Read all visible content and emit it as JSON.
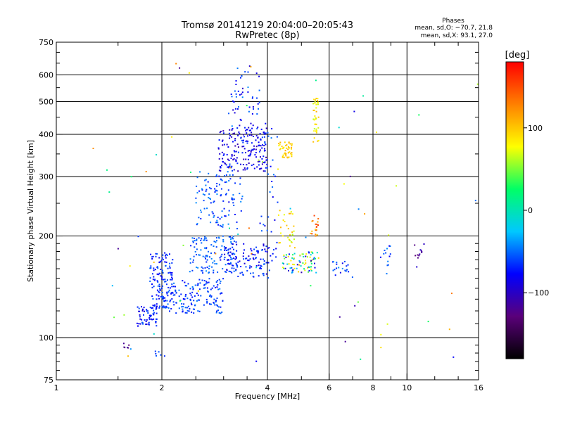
{
  "chart_data": {
    "type": "scatter",
    "title_line1": "Tromsø 20141219 20:04:00–20:05:43",
    "title_line2": "RwPretec (8p)",
    "xlabel": "Frequency [MHz]",
    "ylabel": "Stationary phase Virtual Height [km]",
    "x_scale": "log",
    "y_scale": "log",
    "xlim": [
      1,
      16
    ],
    "ylim": [
      75,
      750
    ],
    "x_ticks": [
      {
        "value": 1,
        "label": "1"
      },
      {
        "value": 2,
        "label": "2"
      },
      {
        "value": 4,
        "label": "4"
      },
      {
        "value": 6,
        "label": "6"
      },
      {
        "value": 8,
        "label": "8"
      },
      {
        "value": 10,
        "label": "10"
      },
      {
        "value": 16,
        "label": "16"
      }
    ],
    "y_ticks": [
      {
        "value": 75,
        "label": "75"
      },
      {
        "value": 100,
        "label": "100"
      },
      {
        "value": 200,
        "label": "200"
      },
      {
        "value": 300,
        "label": "300"
      },
      {
        "value": 400,
        "label": "400"
      },
      {
        "value": 500,
        "label": "500"
      },
      {
        "value": 600,
        "label": "600"
      },
      {
        "value": 750,
        "label": "750"
      }
    ],
    "grid": true,
    "phase_box": {
      "title": "Phases",
      "line1": "mean, sd,O: −70.7, 21.8",
      "line2": "mean, sd,X:  93.1, 27.0"
    },
    "colorbar": {
      "label": "[deg]",
      "range": [
        -180,
        180
      ],
      "ticks": [
        {
          "value": 100,
          "label": "100"
        },
        {
          "value": 0,
          "label": "0"
        },
        {
          "value": -100,
          "label": "−100"
        }
      ],
      "colors": [
        "#000000",
        "#5a007a",
        "#0000ff",
        "#00c8ff",
        "#00ff66",
        "#ffff00",
        "#ff8000",
        "#ff0000"
      ]
    },
    "clusters": [
      {
        "x": [
          1.7,
          1.95
        ],
        "y": [
          108,
          125
        ],
        "phase": [
          -95,
          -55
        ],
        "n": 60
      },
      {
        "x": [
          1.85,
          2.15
        ],
        "y": [
          120,
          180
        ],
        "phase": [
          -85,
          -50
        ],
        "n": 120
      },
      {
        "x": [
          2.0,
          3.0
        ],
        "y": [
          118,
          150
        ],
        "phase": [
          -80,
          -45
        ],
        "n": 170
      },
      {
        "x": [
          2.4,
          3.3
        ],
        "y": [
          155,
          200
        ],
        "phase": [
          -70,
          -40
        ],
        "n": 130
      },
      {
        "x": [
          2.5,
          3.4
        ],
        "y": [
          210,
          310
        ],
        "phase": [
          -75,
          -40
        ],
        "n": 110
      },
      {
        "x": [
          2.9,
          4.0
        ],
        "y": [
          310,
          420
        ],
        "phase": [
          -110,
          -60
        ],
        "n": 190
      },
      {
        "x": [
          3.1,
          3.8
        ],
        "y": [
          420,
          640
        ],
        "phase": [
          -100,
          -40
        ],
        "n": 50
      },
      {
        "x": [
          3.0,
          4.1
        ],
        "y": [
          150,
          190
        ],
        "phase": [
          -95,
          -55
        ],
        "n": 110
      },
      {
        "x": [
          3.8,
          4.3
        ],
        "y": [
          160,
          450
        ],
        "phase": [
          -85,
          -45
        ],
        "n": 40
      },
      {
        "x": [
          4.3,
          4.7
        ],
        "y": [
          340,
          380
        ],
        "phase": [
          80,
          115
        ],
        "n": 45
      },
      {
        "x": [
          4.4,
          5.6
        ],
        "y": [
          155,
          180
        ],
        "phase": [
          -110,
          100
        ],
        "n": 80
      },
      {
        "x": [
          4.3,
          4.8
        ],
        "y": [
          180,
          240
        ],
        "phase": [
          60,
          110
        ],
        "n": 30
      },
      {
        "x": [
          5.4,
          5.6
        ],
        "y": [
          380,
          520
        ],
        "phase": [
          60,
          110
        ],
        "n": 40
      },
      {
        "x": [
          5.3,
          5.6
        ],
        "y": [
          200,
          230
        ],
        "phase": [
          100,
          160
        ],
        "n": 20
      },
      {
        "x": [
          6.0,
          7.0
        ],
        "y": [
          150,
          170
        ],
        "phase": [
          -90,
          -40
        ],
        "n": 20
      },
      {
        "x": [
          8.4,
          9.0
        ],
        "y": [
          160,
          190
        ],
        "phase": [
          -80,
          -40
        ],
        "n": 12
      },
      {
        "x": [
          10.3,
          11.2
        ],
        "y": [
          160,
          190
        ],
        "phase": [
          -130,
          -90
        ],
        "n": 12
      },
      {
        "x": [
          1.2,
          16
        ],
        "y": [
          85,
          650
        ],
        "phase": [
          -120,
          140
        ],
        "n": 70
      },
      {
        "x": [
          1.55,
          1.62
        ],
        "y": [
          93,
          97
        ],
        "phase": [
          -130,
          -110
        ],
        "n": 6
      },
      {
        "x": [
          1.9,
          2.1
        ],
        "y": [
          88,
          92
        ],
        "phase": [
          -70,
          -50
        ],
        "n": 6
      }
    ]
  }
}
